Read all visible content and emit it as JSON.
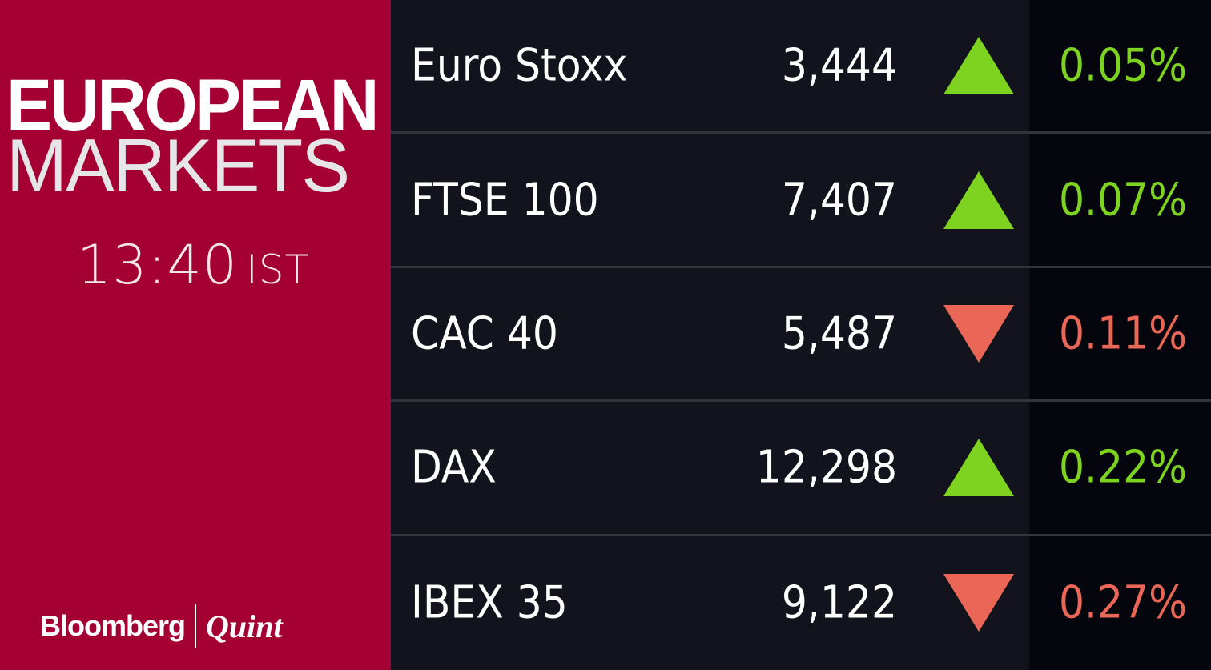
{
  "header": {
    "title_line1": "EUROPEAN",
    "title_line2": "MARKETS",
    "time": "13:40",
    "timezone": "IST"
  },
  "branding": {
    "brand1": "Bloomberg",
    "brand2": "Quint"
  },
  "colors": {
    "panel": "#a50034",
    "up": "#7ed321",
    "down": "#ea6656"
  },
  "indices": [
    {
      "name": "Euro Stoxx",
      "value": "3,444",
      "direction": "up",
      "change": "0.05%"
    },
    {
      "name": "FTSE 100",
      "value": "7,407",
      "direction": "up",
      "change": "0.07%"
    },
    {
      "name": "CAC 40",
      "value": "5,487",
      "direction": "down",
      "change": "0.11%"
    },
    {
      "name": "DAX",
      "value": "12,298",
      "direction": "up",
      "change": "0.22%"
    },
    {
      "name": "IBEX 35",
      "value": "9,122",
      "direction": "down",
      "change": "0.27%"
    }
  ]
}
